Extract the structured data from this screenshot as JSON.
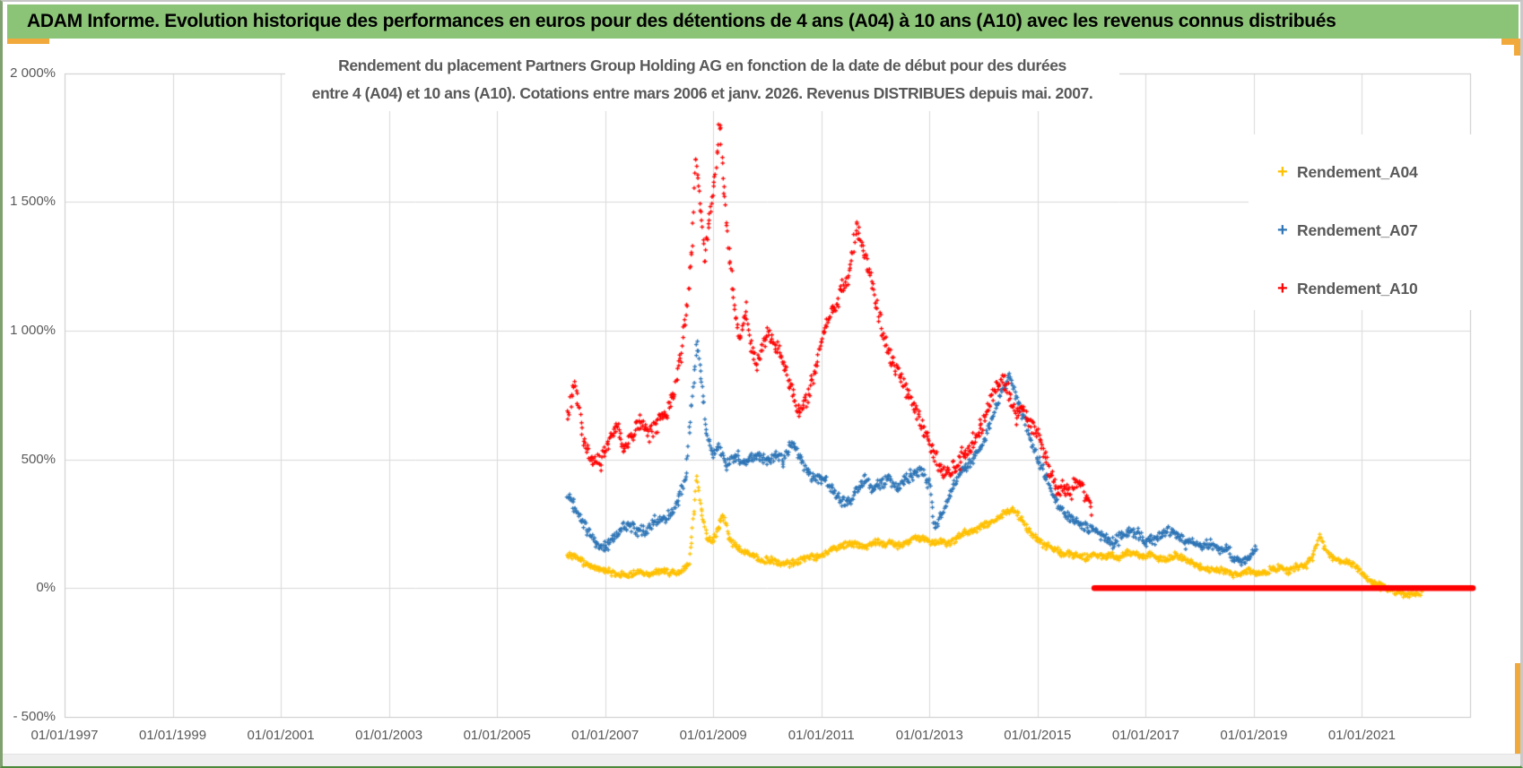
{
  "window": {
    "header_title": "ADAM Informe. Evolution historique des performances en euros pour des détentions de 4 ans (A04) à 10 ans (A10) avec les revenus connus distribués",
    "header_bg": "#8bc377",
    "accent_color": "#f2a93b"
  },
  "chart": {
    "title_line1": "Rendement du placement Partners Group Holding AG en fonction de la date de début pour des durées",
    "title_line2": "entre 4 (A04) et 10 ans (A10). Cotations entre mars 2006 et janv. 2026. Revenus DISTRIBUES depuis mai. 2007."
  },
  "chart_data": {
    "type": "scatter",
    "title": "Rendement du placement Partners Group Holding AG en fonction de la date de début pour des durées entre 4 (A04) et 10 ans (A10). Cotations entre mars 2006 et janv. 2026. Revenus DISTRIBUES depuis mai. 2007.",
    "grid": true,
    "colors": {
      "grid": "#d9d9d9",
      "border": "#c9c9c9",
      "text": "#595959"
    },
    "x_axis": {
      "range_years": [
        1997,
        2023
      ],
      "tick_years": [
        1997,
        1999,
        2001,
        2003,
        2005,
        2007,
        2009,
        2011,
        2013,
        2015,
        2017,
        2019,
        2021
      ],
      "tick_labels": [
        "01/01/1997",
        "01/01/1999",
        "01/01/2001",
        "01/01/2003",
        "01/01/2005",
        "01/01/2007",
        "01/01/2009",
        "01/01/2011",
        "01/01/2013",
        "01/01/2015",
        "01/01/2017",
        "01/01/2019",
        "01/01/2021"
      ]
    },
    "y_axis": {
      "range_pct": [
        -500,
        2000
      ],
      "tick_values": [
        2000,
        1500,
        1000,
        500,
        0,
        -500
      ],
      "tick_labels": [
        "2 000%",
        "1 500%",
        "1 000%",
        "500%",
        "0%",
        "- 500%"
      ]
    },
    "legend": {
      "position": "upper-right-inside",
      "entries": [
        {
          "label": "Rendement_A04",
          "color": "#FFC000",
          "marker": "+"
        },
        {
          "label": "Rendement_A07",
          "color": "#2E75B6",
          "marker": "+"
        },
        {
          "label": "Rendement_A10",
          "color": "#FF0000",
          "marker": "+"
        }
      ]
    },
    "series": [
      {
        "name": "Rendement_A04",
        "color": "#FFC000",
        "marker": "+",
        "jitter_pct": 16,
        "points": [
          [
            2006.3,
            128
          ],
          [
            2006.45,
            115
          ],
          [
            2006.6,
            98
          ],
          [
            2006.75,
            85
          ],
          [
            2006.9,
            78
          ],
          [
            2007.05,
            62
          ],
          [
            2007.2,
            50
          ],
          [
            2007.35,
            45
          ],
          [
            2007.5,
            55
          ],
          [
            2007.65,
            68
          ],
          [
            2007.8,
            55
          ],
          [
            2007.95,
            60
          ],
          [
            2008.1,
            62
          ],
          [
            2008.25,
            56
          ],
          [
            2008.4,
            68
          ],
          [
            2008.55,
            95
          ],
          [
            2008.65,
            300
          ],
          [
            2008.7,
            432
          ],
          [
            2008.78,
            298
          ],
          [
            2008.88,
            198
          ],
          [
            2008.98,
            172
          ],
          [
            2009.1,
            242
          ],
          [
            2009.18,
            292
          ],
          [
            2009.3,
            195
          ],
          [
            2009.45,
            158
          ],
          [
            2009.6,
            132
          ],
          [
            2009.75,
            122
          ],
          [
            2009.9,
            108
          ],
          [
            2010.05,
            118
          ],
          [
            2010.2,
            98
          ],
          [
            2010.35,
            88
          ],
          [
            2010.5,
            95
          ],
          [
            2010.65,
            112
          ],
          [
            2010.8,
            128
          ],
          [
            2010.95,
            122
          ],
          [
            2011.1,
            132
          ],
          [
            2011.25,
            148
          ],
          [
            2011.4,
            162
          ],
          [
            2011.55,
            178
          ],
          [
            2011.7,
            172
          ],
          [
            2011.85,
            160
          ],
          [
            2012.0,
            172
          ],
          [
            2012.15,
            162
          ],
          [
            2012.3,
            178
          ],
          [
            2012.45,
            168
          ],
          [
            2012.6,
            180
          ],
          [
            2012.75,
            192
          ],
          [
            2012.9,
            185
          ],
          [
            2013.05,
            175
          ],
          [
            2013.2,
            188
          ],
          [
            2013.35,
            178
          ],
          [
            2013.5,
            192
          ],
          [
            2013.65,
            208
          ],
          [
            2013.8,
            222
          ],
          [
            2013.95,
            242
          ],
          [
            2014.1,
            258
          ],
          [
            2014.25,
            272
          ],
          [
            2014.4,
            285
          ],
          [
            2014.55,
            298
          ],
          [
            2014.7,
            272
          ],
          [
            2014.85,
            225
          ],
          [
            2015.0,
            188
          ],
          [
            2015.15,
            162
          ],
          [
            2015.3,
            148
          ],
          [
            2015.45,
            132
          ],
          [
            2015.6,
            142
          ],
          [
            2015.75,
            128
          ],
          [
            2015.9,
            115
          ],
          [
            2016.05,
            128
          ],
          [
            2016.2,
            118
          ],
          [
            2016.35,
            135
          ],
          [
            2016.5,
            125
          ],
          [
            2016.65,
            138
          ],
          [
            2016.8,
            128
          ],
          [
            2016.95,
            118
          ],
          [
            2017.1,
            132
          ],
          [
            2017.25,
            122
          ],
          [
            2017.4,
            112
          ],
          [
            2017.55,
            122
          ],
          [
            2017.7,
            108
          ],
          [
            2017.85,
            98
          ],
          [
            2018.0,
            88
          ],
          [
            2018.15,
            78
          ],
          [
            2018.3,
            68
          ],
          [
            2018.45,
            58
          ],
          [
            2018.6,
            52
          ],
          [
            2018.75,
            62
          ],
          [
            2018.9,
            72
          ],
          [
            2019.05,
            62
          ],
          [
            2019.2,
            52
          ],
          [
            2019.35,
            68
          ],
          [
            2019.5,
            82
          ],
          [
            2019.65,
            72
          ],
          [
            2019.8,
            88
          ],
          [
            2019.95,
            78
          ],
          [
            2020.1,
            118
          ],
          [
            2020.22,
            205
          ],
          [
            2020.32,
            152
          ],
          [
            2020.45,
            128
          ],
          [
            2020.6,
            108
          ],
          [
            2020.75,
            92
          ],
          [
            2020.9,
            78
          ],
          [
            2021.05,
            45
          ],
          [
            2021.2,
            25
          ],
          [
            2021.35,
            12
          ],
          [
            2021.5,
            -8
          ],
          [
            2021.65,
            -22
          ],
          [
            2021.8,
            -30
          ],
          [
            2021.95,
            -18
          ],
          [
            2022.1,
            -8
          ]
        ]
      },
      {
        "name": "Rendement_A07",
        "color": "#2E75B6",
        "marker": "+",
        "jitter_pct": 26,
        "points": [
          [
            2006.3,
            350
          ],
          [
            2006.4,
            320
          ],
          [
            2006.55,
            278
          ],
          [
            2006.7,
            222
          ],
          [
            2006.85,
            172
          ],
          [
            2007.0,
            152
          ],
          [
            2007.15,
            178
          ],
          [
            2007.3,
            228
          ],
          [
            2007.45,
            248
          ],
          [
            2007.6,
            232
          ],
          [
            2007.75,
            218
          ],
          [
            2007.9,
            248
          ],
          [
            2008.05,
            262
          ],
          [
            2008.2,
            282
          ],
          [
            2008.35,
            348
          ],
          [
            2008.5,
            452
          ],
          [
            2008.6,
            705
          ],
          [
            2008.7,
            948
          ],
          [
            2008.78,
            800
          ],
          [
            2008.88,
            598
          ],
          [
            2009.0,
            518
          ],
          [
            2009.1,
            562
          ],
          [
            2009.25,
            480
          ],
          [
            2009.4,
            515
          ],
          [
            2009.55,
            478
          ],
          [
            2009.7,
            500
          ],
          [
            2009.85,
            520
          ],
          [
            2010.0,
            505
          ],
          [
            2010.15,
            522
          ],
          [
            2010.3,
            482
          ],
          [
            2010.45,
            562
          ],
          [
            2010.6,
            520
          ],
          [
            2010.75,
            462
          ],
          [
            2010.9,
            428
          ],
          [
            2011.05,
            418
          ],
          [
            2011.2,
            372
          ],
          [
            2011.35,
            342
          ],
          [
            2011.5,
            338
          ],
          [
            2011.65,
            392
          ],
          [
            2011.8,
            418
          ],
          [
            2011.95,
            378
          ],
          [
            2012.1,
            402
          ],
          [
            2012.25,
            432
          ],
          [
            2012.4,
            398
          ],
          [
            2012.55,
            425
          ],
          [
            2012.7,
            432
          ],
          [
            2012.85,
            452
          ],
          [
            2013.0,
            402
          ],
          [
            2013.1,
            242
          ],
          [
            2013.2,
            282
          ],
          [
            2013.35,
            348
          ],
          [
            2013.5,
            418
          ],
          [
            2013.65,
            458
          ],
          [
            2013.8,
            502
          ],
          [
            2013.95,
            558
          ],
          [
            2014.1,
            628
          ],
          [
            2014.25,
            702
          ],
          [
            2014.4,
            782
          ],
          [
            2014.5,
            815
          ],
          [
            2014.6,
            748
          ],
          [
            2014.75,
            678
          ],
          [
            2014.9,
            558
          ],
          [
            2015.05,
            478
          ],
          [
            2015.2,
            398
          ],
          [
            2015.35,
            332
          ],
          [
            2015.5,
            298
          ],
          [
            2015.65,
            272
          ],
          [
            2015.8,
            248
          ],
          [
            2015.95,
            222
          ],
          [
            2016.1,
            212
          ],
          [
            2016.25,
            205
          ],
          [
            2016.4,
            182
          ],
          [
            2016.55,
            198
          ],
          [
            2016.7,
            212
          ],
          [
            2016.85,
            205
          ],
          [
            2017.0,
            182
          ],
          [
            2017.15,
            198
          ],
          [
            2017.3,
            218
          ],
          [
            2017.45,
            212
          ],
          [
            2017.6,
            198
          ],
          [
            2017.75,
            172
          ],
          [
            2017.9,
            188
          ],
          [
            2018.05,
            178
          ],
          [
            2018.2,
            168
          ],
          [
            2018.35,
            142
          ],
          [
            2018.5,
            148
          ],
          [
            2018.65,
            122
          ],
          [
            2018.8,
            112
          ],
          [
            2018.95,
            128
          ],
          [
            2019.05,
            152
          ]
        ]
      },
      {
        "name": "Rendement_A10",
        "color": "#FF0000",
        "marker": "+",
        "jitter_pct": 42,
        "points": [
          [
            2006.3,
            650
          ],
          [
            2006.45,
            790
          ],
          [
            2006.6,
            600
          ],
          [
            2006.75,
            520
          ],
          [
            2006.9,
            468
          ],
          [
            2007.05,
            540
          ],
          [
            2007.2,
            625
          ],
          [
            2007.35,
            560
          ],
          [
            2007.5,
            612
          ],
          [
            2007.65,
            655
          ],
          [
            2007.8,
            585
          ],
          [
            2007.95,
            625
          ],
          [
            2008.1,
            680
          ],
          [
            2008.25,
            765
          ],
          [
            2008.4,
            905
          ],
          [
            2008.5,
            1060
          ],
          [
            2008.6,
            1280
          ],
          [
            2008.68,
            1660
          ],
          [
            2008.76,
            1480
          ],
          [
            2008.84,
            1280
          ],
          [
            2008.92,
            1430
          ],
          [
            2009.0,
            1560
          ],
          [
            2009.12,
            1805
          ],
          [
            2009.2,
            1560
          ],
          [
            2009.3,
            1280
          ],
          [
            2009.4,
            1050
          ],
          [
            2009.5,
            965
          ],
          [
            2009.6,
            1080
          ],
          [
            2009.7,
            950
          ],
          [
            2009.8,
            880
          ],
          [
            2009.9,
            950
          ],
          [
            2010.0,
            1000
          ],
          [
            2010.15,
            935
          ],
          [
            2010.3,
            850
          ],
          [
            2010.45,
            775
          ],
          [
            2010.6,
            700
          ],
          [
            2010.75,
            760
          ],
          [
            2010.9,
            855
          ],
          [
            2011.05,
            985
          ],
          [
            2011.2,
            1060
          ],
          [
            2011.35,
            1155
          ],
          [
            2011.5,
            1230
          ],
          [
            2011.65,
            1395
          ],
          [
            2011.75,
            1330
          ],
          [
            2011.85,
            1240
          ],
          [
            2012.0,
            1105
          ],
          [
            2012.15,
            980
          ],
          [
            2012.3,
            905
          ],
          [
            2012.45,
            820
          ],
          [
            2012.6,
            745
          ],
          [
            2012.75,
            680
          ],
          [
            2012.9,
            615
          ],
          [
            2013.05,
            555
          ],
          [
            2013.2,
            480
          ],
          [
            2013.35,
            432
          ],
          [
            2013.5,
            462
          ],
          [
            2013.65,
            520
          ],
          [
            2013.8,
            580
          ],
          [
            2013.95,
            640
          ],
          [
            2014.1,
            705
          ],
          [
            2014.25,
            762
          ],
          [
            2014.4,
            800
          ],
          [
            2014.5,
            738
          ],
          [
            2014.62,
            685
          ],
          [
            2014.72,
            722
          ],
          [
            2014.82,
            658
          ],
          [
            2014.95,
            598
          ],
          [
            2015.05,
            552
          ],
          [
            2015.15,
            498
          ],
          [
            2015.25,
            425
          ],
          [
            2015.4,
            392
          ],
          [
            2015.5,
            405
          ],
          [
            2015.6,
            372
          ],
          [
            2015.7,
            418
          ],
          [
            2015.8,
            378
          ],
          [
            2015.9,
            330
          ],
          [
            2016.0,
            298
          ]
        ]
      }
    ],
    "flat_zero_segment": {
      "series": "Rendement_A10",
      "from_year": 2016.05,
      "to_year": 2023.05,
      "value_pct": 0,
      "color": "#FF0000",
      "thickness_px": 6.5
    }
  }
}
